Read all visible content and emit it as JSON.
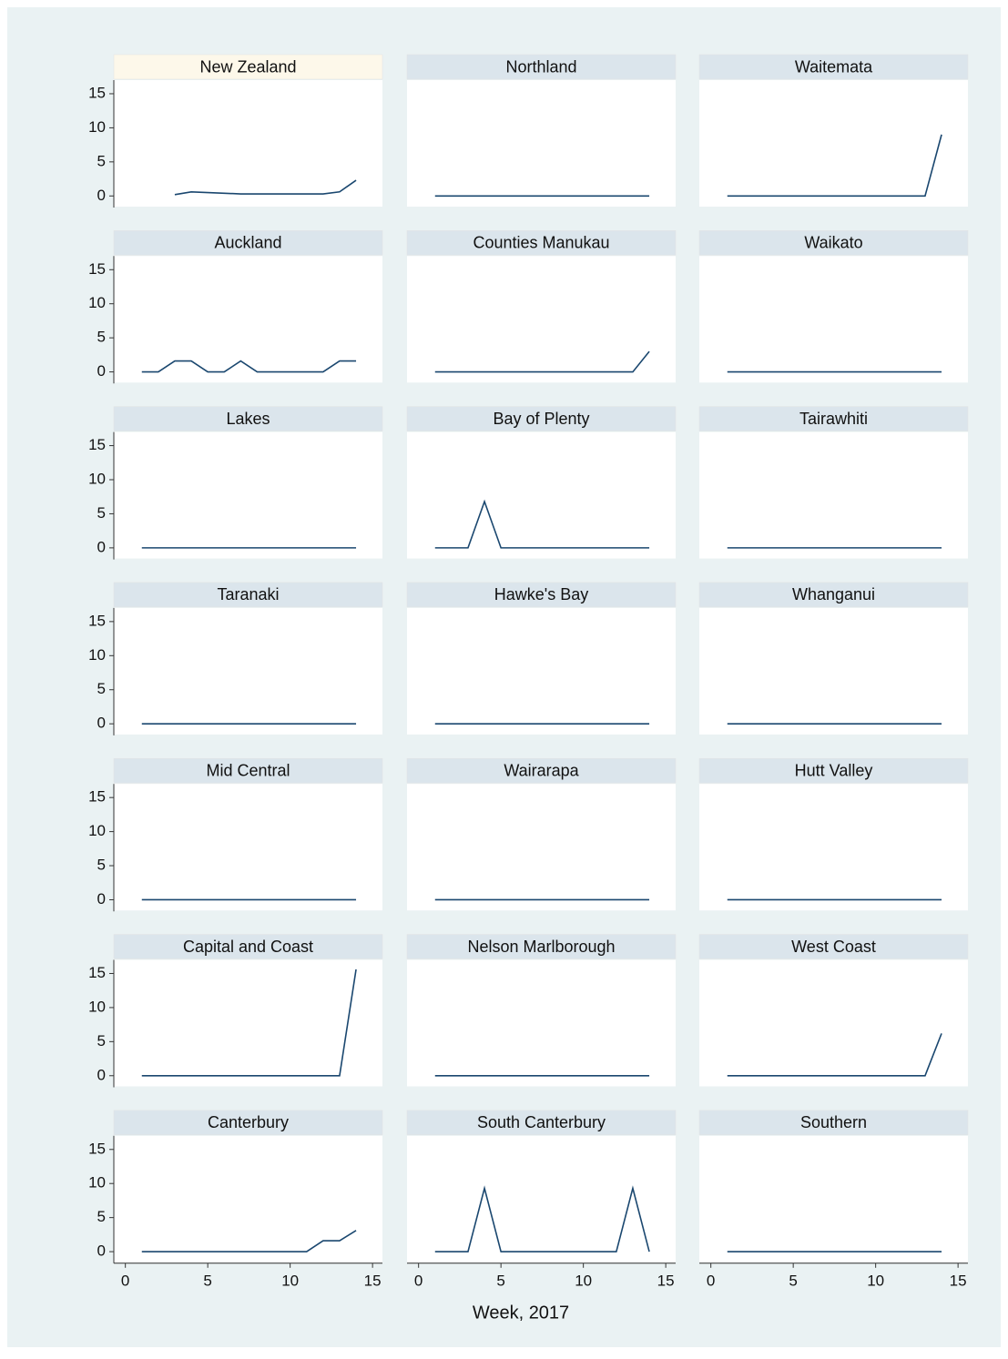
{
  "xlabel": "Week, 2017",
  "chart_data": [
    {
      "type": "line",
      "title": "New Zealand",
      "header_color": "#fdf8ea",
      "color": "#1a476f",
      "x": [
        1,
        2,
        3,
        4,
        5,
        6,
        7,
        8,
        9,
        10,
        11,
        12,
        13,
        14
      ],
      "values": [
        null,
        null,
        0.2,
        0.6,
        0.5,
        0.4,
        0.3,
        0.3,
        0.3,
        0.3,
        0.3,
        0.3,
        0.6,
        2.3
      ],
      "xlim": [
        -0.7,
        15.6
      ],
      "ylim": [
        -1.7,
        17
      ],
      "yticks": [
        0,
        5,
        10,
        15
      ]
    },
    {
      "type": "line",
      "title": "Northland",
      "header_color": "#dbe5ec",
      "color": "#1a476f",
      "x": [
        1,
        2,
        3,
        4,
        5,
        6,
        7,
        8,
        9,
        10,
        11,
        12,
        13,
        14
      ],
      "values": [
        0,
        0,
        0,
        0,
        0,
        0,
        0,
        0,
        0,
        0,
        0,
        0,
        0,
        0
      ],
      "xlim": [
        -0.7,
        15.6
      ],
      "ylim": [
        -1.7,
        17
      ]
    },
    {
      "type": "line",
      "title": "Waitemata",
      "header_color": "#dbe5ec",
      "color": "#1a476f",
      "x": [
        1,
        2,
        3,
        4,
        5,
        6,
        7,
        8,
        9,
        10,
        11,
        12,
        13,
        14
      ],
      "values": [
        0,
        0,
        0,
        0,
        0,
        0,
        0,
        0,
        0,
        0,
        0,
        0,
        0,
        9
      ],
      "xlim": [
        -0.7,
        15.6
      ],
      "ylim": [
        -1.7,
        17
      ]
    },
    {
      "type": "line",
      "title": "Auckland",
      "header_color": "#dbe5ec",
      "color": "#1a476f",
      "x": [
        1,
        2,
        3,
        4,
        5,
        6,
        7,
        8,
        9,
        10,
        11,
        12,
        13,
        14
      ],
      "values": [
        0,
        0,
        1.6,
        1.6,
        0,
        0,
        1.6,
        0,
        0,
        0,
        0,
        0,
        1.6,
        1.6
      ],
      "xlim": [
        -0.7,
        15.6
      ],
      "ylim": [
        -1.7,
        17
      ],
      "yticks": [
        0,
        5,
        10,
        15
      ]
    },
    {
      "type": "line",
      "title": "Counties Manukau",
      "header_color": "#dbe5ec",
      "color": "#1a476f",
      "x": [
        1,
        2,
        3,
        4,
        5,
        6,
        7,
        8,
        9,
        10,
        11,
        12,
        13,
        14
      ],
      "values": [
        0,
        0,
        0,
        0,
        0,
        0,
        0,
        0,
        0,
        0,
        0,
        0,
        0,
        3
      ],
      "xlim": [
        -0.7,
        15.6
      ],
      "ylim": [
        -1.7,
        17
      ]
    },
    {
      "type": "line",
      "title": "Waikato",
      "header_color": "#dbe5ec",
      "color": "#1a476f",
      "x": [
        1,
        2,
        3,
        4,
        5,
        6,
        7,
        8,
        9,
        10,
        11,
        12,
        13,
        14
      ],
      "values": [
        0,
        0,
        0,
        0,
        0,
        0,
        0,
        0,
        0,
        0,
        0,
        0,
        0,
        0
      ],
      "xlim": [
        -0.7,
        15.6
      ],
      "ylim": [
        -1.7,
        17
      ]
    },
    {
      "type": "line",
      "title": "Lakes",
      "header_color": "#dbe5ec",
      "color": "#1a476f",
      "x": [
        1,
        2,
        3,
        4,
        5,
        6,
        7,
        8,
        9,
        10,
        11,
        12,
        13,
        14
      ],
      "values": [
        0,
        0,
        0,
        0,
        0,
        0,
        0,
        0,
        0,
        0,
        0,
        0,
        0,
        0
      ],
      "xlim": [
        -0.7,
        15.6
      ],
      "ylim": [
        -1.7,
        17
      ],
      "yticks": [
        0,
        5,
        10,
        15
      ]
    },
    {
      "type": "line",
      "title": "Bay of Plenty",
      "header_color": "#dbe5ec",
      "color": "#1a476f",
      "x": [
        1,
        2,
        3,
        4,
        5,
        6,
        7,
        8,
        9,
        10,
        11,
        12,
        13,
        14
      ],
      "values": [
        0,
        0,
        0,
        6.8,
        0,
        0,
        0,
        0,
        0,
        0,
        0,
        0,
        0,
        0
      ],
      "xlim": [
        -0.7,
        15.6
      ],
      "ylim": [
        -1.7,
        17
      ]
    },
    {
      "type": "line",
      "title": "Tairawhiti",
      "header_color": "#dbe5ec",
      "color": "#1a476f",
      "x": [
        1,
        2,
        3,
        4,
        5,
        6,
        7,
        8,
        9,
        10,
        11,
        12,
        13,
        14
      ],
      "values": [
        0,
        0,
        0,
        0,
        0,
        0,
        0,
        0,
        0,
        0,
        0,
        0,
        0,
        0
      ],
      "xlim": [
        -0.7,
        15.6
      ],
      "ylim": [
        -1.7,
        17
      ]
    },
    {
      "type": "line",
      "title": "Taranaki",
      "header_color": "#dbe5ec",
      "color": "#1a476f",
      "x": [
        1,
        2,
        3,
        4,
        5,
        6,
        7,
        8,
        9,
        10,
        11,
        12,
        13,
        14
      ],
      "values": [
        0,
        0,
        0,
        0,
        0,
        0,
        0,
        0,
        0,
        0,
        0,
        0,
        0,
        0
      ],
      "xlim": [
        -0.7,
        15.6
      ],
      "ylim": [
        -1.7,
        17
      ],
      "yticks": [
        0,
        5,
        10,
        15
      ]
    },
    {
      "type": "line",
      "title": "Hawke's Bay",
      "header_color": "#dbe5ec",
      "color": "#1a476f",
      "x": [
        1,
        2,
        3,
        4,
        5,
        6,
        7,
        8,
        9,
        10,
        11,
        12,
        13,
        14
      ],
      "values": [
        0,
        0,
        0,
        0,
        0,
        0,
        0,
        0,
        0,
        0,
        0,
        0,
        0,
        0
      ],
      "xlim": [
        -0.7,
        15.6
      ],
      "ylim": [
        -1.7,
        17
      ]
    },
    {
      "type": "line",
      "title": "Whanganui",
      "header_color": "#dbe5ec",
      "color": "#1a476f",
      "x": [
        1,
        2,
        3,
        4,
        5,
        6,
        7,
        8,
        9,
        10,
        11,
        12,
        13,
        14
      ],
      "values": [
        0,
        0,
        0,
        0,
        0,
        0,
        0,
        0,
        0,
        0,
        0,
        0,
        0,
        0
      ],
      "xlim": [
        -0.7,
        15.6
      ],
      "ylim": [
        -1.7,
        17
      ]
    },
    {
      "type": "line",
      "title": "Mid Central",
      "header_color": "#dbe5ec",
      "color": "#1a476f",
      "x": [
        1,
        2,
        3,
        4,
        5,
        6,
        7,
        8,
        9,
        10,
        11,
        12,
        13,
        14
      ],
      "values": [
        0,
        0,
        0,
        0,
        0,
        0,
        0,
        0,
        0,
        0,
        0,
        0,
        0,
        0
      ],
      "xlim": [
        -0.7,
        15.6
      ],
      "ylim": [
        -1.7,
        17
      ],
      "yticks": [
        0,
        5,
        10,
        15
      ]
    },
    {
      "type": "line",
      "title": "Wairarapa",
      "header_color": "#dbe5ec",
      "color": "#1a476f",
      "x": [
        1,
        2,
        3,
        4,
        5,
        6,
        7,
        8,
        9,
        10,
        11,
        12,
        13,
        14
      ],
      "values": [
        0,
        0,
        0,
        0,
        0,
        0,
        0,
        0,
        0,
        0,
        0,
        0,
        0,
        0
      ],
      "xlim": [
        -0.7,
        15.6
      ],
      "ylim": [
        -1.7,
        17
      ]
    },
    {
      "type": "line",
      "title": "Hutt Valley",
      "header_color": "#dbe5ec",
      "color": "#1a476f",
      "x": [
        1,
        2,
        3,
        4,
        5,
        6,
        7,
        8,
        9,
        10,
        11,
        12,
        13,
        14
      ],
      "values": [
        0,
        0,
        0,
        0,
        0,
        0,
        0,
        0,
        0,
        0,
        0,
        0,
        0,
        0
      ],
      "xlim": [
        -0.7,
        15.6
      ],
      "ylim": [
        -1.7,
        17
      ]
    },
    {
      "type": "line",
      "title": "Capital and Coast",
      "header_color": "#dbe5ec",
      "color": "#1a476f",
      "x": [
        1,
        2,
        3,
        4,
        5,
        6,
        7,
        8,
        9,
        10,
        11,
        12,
        13,
        14
      ],
      "values": [
        0,
        0,
        0,
        0,
        0,
        0,
        0,
        0,
        0,
        0,
        0,
        0,
        0,
        15.6
      ],
      "xlim": [
        -0.7,
        15.6
      ],
      "ylim": [
        -1.7,
        17
      ],
      "yticks": [
        0,
        5,
        10,
        15
      ]
    },
    {
      "type": "line",
      "title": "Nelson Marlborough",
      "header_color": "#dbe5ec",
      "color": "#1a476f",
      "x": [
        1,
        2,
        3,
        4,
        5,
        6,
        7,
        8,
        9,
        10,
        11,
        12,
        13,
        14
      ],
      "values": [
        0,
        0,
        0,
        0,
        0,
        0,
        0,
        0,
        0,
        0,
        0,
        0,
        0,
        0
      ],
      "xlim": [
        -0.7,
        15.6
      ],
      "ylim": [
        -1.7,
        17
      ]
    },
    {
      "type": "line",
      "title": "West Coast",
      "header_color": "#dbe5ec",
      "color": "#1a476f",
      "x": [
        1,
        2,
        3,
        4,
        5,
        6,
        7,
        8,
        9,
        10,
        11,
        12,
        13,
        14
      ],
      "values": [
        0,
        0,
        0,
        0,
        0,
        0,
        0,
        0,
        0,
        0,
        0,
        0,
        0,
        6.2
      ],
      "xlim": [
        -0.7,
        15.6
      ],
      "ylim": [
        -1.7,
        17
      ]
    },
    {
      "type": "line",
      "title": "Canterbury",
      "header_color": "#dbe5ec",
      "color": "#1a476f",
      "x": [
        1,
        2,
        3,
        4,
        5,
        6,
        7,
        8,
        9,
        10,
        11,
        12,
        13,
        14
      ],
      "values": [
        0,
        0,
        0,
        0,
        0,
        0,
        0,
        0,
        0,
        0,
        0,
        1.6,
        1.6,
        3.1
      ],
      "xlim": [
        -0.7,
        15.6
      ],
      "ylim": [
        -1.7,
        17
      ],
      "yticks": [
        0,
        5,
        10,
        15
      ],
      "xticks": [
        0,
        5,
        10,
        15
      ]
    },
    {
      "type": "line",
      "title": "South Canterbury",
      "header_color": "#dbe5ec",
      "color": "#1a476f",
      "x": [
        1,
        2,
        3,
        4,
        5,
        6,
        7,
        8,
        9,
        10,
        11,
        12,
        13,
        14
      ],
      "values": [
        0,
        0,
        0,
        9.3,
        0,
        0,
        0,
        0,
        0,
        0,
        0,
        0,
        9.3,
        0
      ],
      "xlim": [
        -0.7,
        15.6
      ],
      "ylim": [
        -1.7,
        17
      ],
      "xticks": [
        0,
        5,
        10,
        15
      ]
    },
    {
      "type": "line",
      "title": "Southern",
      "header_color": "#dbe5ec",
      "color": "#1a476f",
      "x": [
        1,
        2,
        3,
        4,
        5,
        6,
        7,
        8,
        9,
        10,
        11,
        12,
        13,
        14
      ],
      "values": [
        0,
        0,
        0,
        0,
        0,
        0,
        0,
        0,
        0,
        0,
        0,
        0,
        0,
        0
      ],
      "xlim": [
        -0.7,
        15.6
      ],
      "ylim": [
        -1.7,
        17
      ],
      "xticks": [
        0,
        5,
        10,
        15
      ]
    }
  ]
}
